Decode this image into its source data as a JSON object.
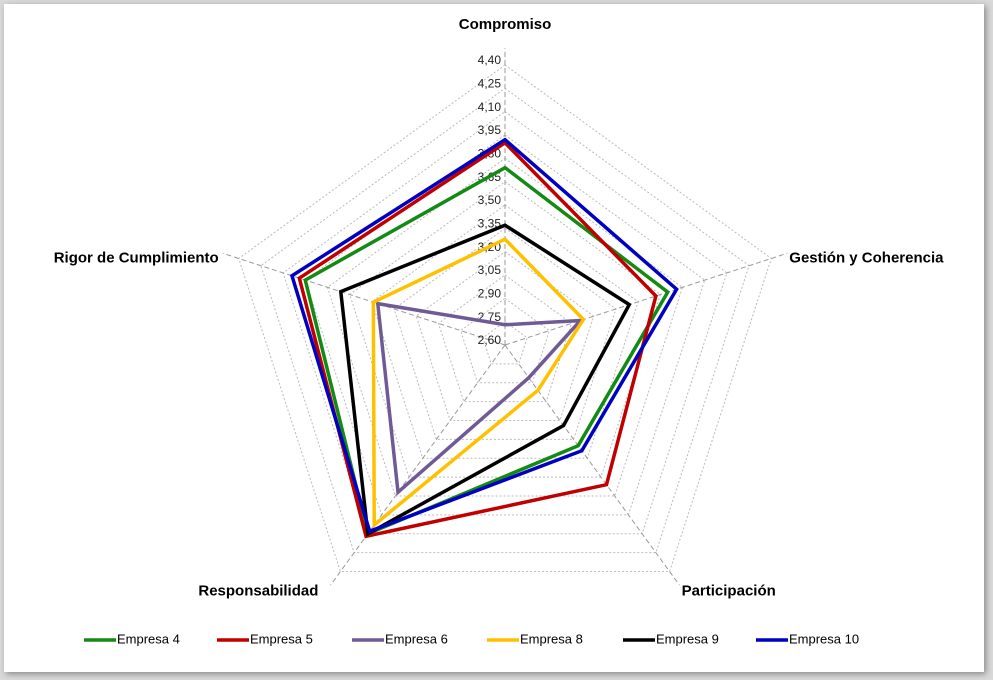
{
  "chart_data": {
    "type": "radar",
    "categories": [
      "Compromiso",
      "Gestión y Coherencia",
      "Participación",
      "Responsabilidad",
      "Rigor de Cumplimiento"
    ],
    "ylim": [
      2.6,
      4.4
    ],
    "yticks": [
      {
        "value": 2.6,
        "label": "2,60"
      },
      {
        "value": 2.75,
        "label": "2,75"
      },
      {
        "value": 2.9,
        "label": "2,90"
      },
      {
        "value": 3.05,
        "label": "3,05"
      },
      {
        "value": 3.2,
        "label": "3,20"
      },
      {
        "value": 3.35,
        "label": "3,35"
      },
      {
        "value": 3.5,
        "label": "3,50"
      },
      {
        "value": 3.65,
        "label": "3,65"
      },
      {
        "value": 3.8,
        "label": "3,80"
      },
      {
        "value": 3.95,
        "label": "3,95"
      },
      {
        "value": 4.1,
        "label": "4,10"
      },
      {
        "value": 4.25,
        "label": "4,25"
      },
      {
        "value": 4.4,
        "label": "4,40"
      }
    ],
    "grid": true,
    "legend": "bottom",
    "series": [
      {
        "name": "Empresa 4",
        "color": "#138a13",
        "values": [
          3.74,
          3.7,
          3.4,
          4.1,
          3.95
        ]
      },
      {
        "name": "Empresa 5",
        "color": "#c00000",
        "values": [
          3.9,
          3.62,
          3.71,
          4.12,
          3.99
        ]
      },
      {
        "name": "Empresa 6",
        "color": "#6f5a96",
        "values": [
          2.73,
          3.11,
          2.86,
          3.77,
          3.46
        ]
      },
      {
        "name": "Empresa 8",
        "color": "#ffc000",
        "values": [
          3.28,
          3.13,
          2.96,
          4.03,
          3.49
        ]
      },
      {
        "name": "Empresa 9",
        "color": "#000000",
        "values": [
          3.37,
          3.44,
          3.24,
          4.1,
          3.71
        ]
      },
      {
        "name": "Empresa 10",
        "color": "#0000c0",
        "values": [
          3.92,
          3.76,
          3.44,
          4.08,
          4.04
        ]
      }
    ]
  }
}
